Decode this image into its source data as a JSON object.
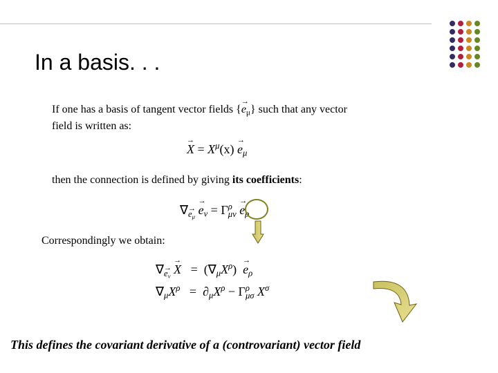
{
  "title": "In a basis. . .",
  "decoration": {
    "rows": 6,
    "cols": 4,
    "colors_by_col": [
      "#332b66",
      "#b22040",
      "#cc8822",
      "#668822"
    ]
  },
  "text": {
    "line1_pre": "If one has a basis of tangent vector fields {",
    "line1_vec": "e",
    "line1_sub": "μ",
    "line1_post": "} such that any vector",
    "line2": "field is written as:",
    "line3_pre": "then the connection is defined by giving ",
    "line3_bold": "its coefficients",
    "line3_post": ":",
    "line4": "Correspondingly we obtain:",
    "footer": "This defines the covariant derivative of a (controvariant) vector field"
  },
  "equations": {
    "eq1": {
      "lhs_vec": "X",
      "eq": " = ",
      "X": "X",
      "sup_mu": "μ",
      "x_paren": "(x)",
      "e_vec": "e",
      "sub_mu": "μ"
    },
    "eq2": {
      "nabla": "∇",
      "e1_vec": "e",
      "e1_sub": "μ",
      "e2_vec": "e",
      "e2_sub": "ν",
      "eq": " = ",
      "Gamma": "Γ",
      "g_sup": "ρ",
      "g_sub": "μν",
      "e3_vec": "e",
      "e3_sub": "ρ"
    },
    "eq3": {
      "nabla": "∇",
      "e_vec": "e",
      "e_sub": "ν",
      "X_vec": "X",
      "eq": " = ",
      "lparen": "(",
      "nabla2": "∇",
      "mu": "μ",
      "X": "X",
      "rho": "ρ",
      "rparen": ") ",
      "er_vec": "e",
      "er_sub": "ρ"
    },
    "eq4": {
      "nabla": "∇",
      "mu": "μ",
      "X": "X",
      "rho": "ρ",
      "eq": " = ",
      "partial": "∂",
      "mu2": "μ",
      "X2": "X",
      "rho2": "ρ",
      "minus": " − ",
      "Gamma": "Γ",
      "g_sup": "ρ",
      "g_sub": "μσ",
      "X3": " X",
      "sigma": "σ"
    }
  },
  "shapes": {
    "ellipse_color": "#808020",
    "arrow_fill": "#d8d070",
    "arrow_stroke": "#706010"
  }
}
